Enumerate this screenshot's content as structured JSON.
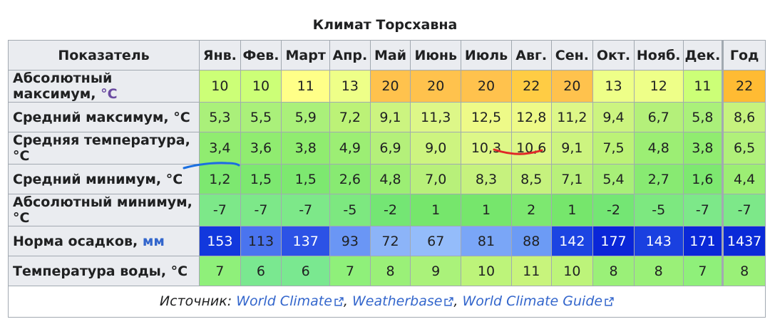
{
  "title": "Климат Торсхавна",
  "header": {
    "indicator": "Показатель",
    "months": [
      "Янв.",
      "Фев.",
      "Март",
      "Апр.",
      "Май",
      "Июнь",
      "Июль",
      "Авг.",
      "Сен.",
      "Окт.",
      "Нояб.",
      "Дек."
    ],
    "year": "Год"
  },
  "rows": [
    {
      "label": "Абсолютный максимум,",
      "unit": "°C",
      "unit_colored": true,
      "values": [
        "10",
        "10",
        "11",
        "13",
        "20",
        "20",
        "20",
        "22",
        "20",
        "13",
        "12",
        "11"
      ],
      "year": "22",
      "colors": [
        "#ccff77",
        "#ccff77",
        "#ffff88",
        "#eeff88",
        "#ffc24d",
        "#ffc24d",
        "#ffc24d",
        "#ffcc44",
        "#ffc24d",
        "#eeff88",
        "#eeff88",
        "#ccff77"
      ],
      "year_color": "#ffbb33"
    },
    {
      "label": "Средний максимум, °C",
      "unit": "",
      "unit_colored": false,
      "values": [
        "5,3",
        "5,5",
        "5,9",
        "7,2",
        "9,1",
        "11,3",
        "12,5",
        "12,8",
        "11,2",
        "9,4",
        "6,7",
        "5,8"
      ],
      "year": "8,6",
      "colors": [
        "#aaf07a",
        "#aaf07a",
        "#aaf07a",
        "#bcf277",
        "#ccf480",
        "#ddf788",
        "#eefa88",
        "#eefa88",
        "#ddf788",
        "#ccf480",
        "#b4f07a",
        "#aaf07a"
      ],
      "year_color": "#c6f27e"
    },
    {
      "label": "Средняя температура, °C",
      "unit": "",
      "unit_colored": false,
      "values": [
        "3,4",
        "3,6",
        "3,8",
        "4,9",
        "6,9",
        "9,0",
        "10,3",
        "10,6",
        "9,1",
        "7,5",
        "4,8",
        "3,8"
      ],
      "year": "6,5",
      "colors": [
        "#90ec70",
        "#90ec70",
        "#90ec70",
        "#9cee74",
        "#b4f07a",
        "#cdf480",
        "#ddf788",
        "#ddf788",
        "#cdf480",
        "#bcf277",
        "#9cee74",
        "#90ec70"
      ],
      "year_color": "#b0f07a"
    },
    {
      "label": "Средний минимум, °C",
      "unit": "",
      "unit_colored": false,
      "values": [
        "1,2",
        "1,5",
        "1,5",
        "2,6",
        "4,8",
        "7,0",
        "8,3",
        "8,5",
        "7,1",
        "5,4",
        "2,7",
        "1,6"
      ],
      "year": "4,4",
      "colors": [
        "#7de870",
        "#7de870",
        "#7de870",
        "#88ea72",
        "#9cee74",
        "#b8f07a",
        "#c6f27e",
        "#c6f27e",
        "#b8f07a",
        "#a8ef78",
        "#88ea72",
        "#7de870"
      ],
      "year_color": "#9cee74"
    },
    {
      "label": "Абсолютный минимум, °C",
      "unit": "",
      "unit_colored": false,
      "values": [
        "-7",
        "-7",
        "-7",
        "-5",
        "-2",
        "1",
        "1",
        "2",
        "1",
        "-2",
        "-5",
        "-7"
      ],
      "year": "-7",
      "colors": [
        "#7de889",
        "#7de889",
        "#7de889",
        "#7de880",
        "#74e674",
        "#76e66c",
        "#76e66c",
        "#7de870",
        "#76e66c",
        "#74e674",
        "#7de880",
        "#7de889"
      ],
      "year_color": "#7de889"
    },
    {
      "label": "Норма осадков,",
      "unit": "мм",
      "unit_colored": true,
      "values": [
        "153",
        "113",
        "137",
        "93",
        "72",
        "67",
        "81",
        "88",
        "142",
        "177",
        "143",
        "171"
      ],
      "year": "1437",
      "colors": [
        "#1238dd",
        "#4a74ef",
        "#2c52e6",
        "#6a96f5",
        "#8cb4f8",
        "#94bcfa",
        "#7aa6f7",
        "#6c9bf5",
        "#1c44e2",
        "#0a26d8",
        "#1a40e0",
        "#0a28d8"
      ],
      "year_color": "#0a2ad8",
      "text_light": [
        true,
        false,
        true,
        false,
        false,
        false,
        false,
        false,
        true,
        true,
        true,
        true
      ],
      "year_light": true
    },
    {
      "label": "Температура воды, °C",
      "unit": "",
      "unit_colored": false,
      "values": [
        "7",
        "6",
        "6",
        "7",
        "8",
        "9",
        "10",
        "11",
        "10",
        "8",
        "8",
        "7"
      ],
      "year": "8",
      "colors": [
        "#8ff07a",
        "#7ae890",
        "#7ae890",
        "#8ff07a",
        "#9af078",
        "#aaf27a",
        "#bdf47a",
        "#c8f47c",
        "#bdf47a",
        "#9af078",
        "#9af078",
        "#8ff07a"
      ],
      "year_color": "#9af078"
    }
  ],
  "footer": {
    "prefix": "Источник:",
    "links": [
      "World Climate",
      "Weatherbase",
      "World Climate Guide"
    ]
  },
  "annotations": {
    "blue_stroke_color": "#1a6fe0",
    "red_stroke_color": "#e02828"
  }
}
